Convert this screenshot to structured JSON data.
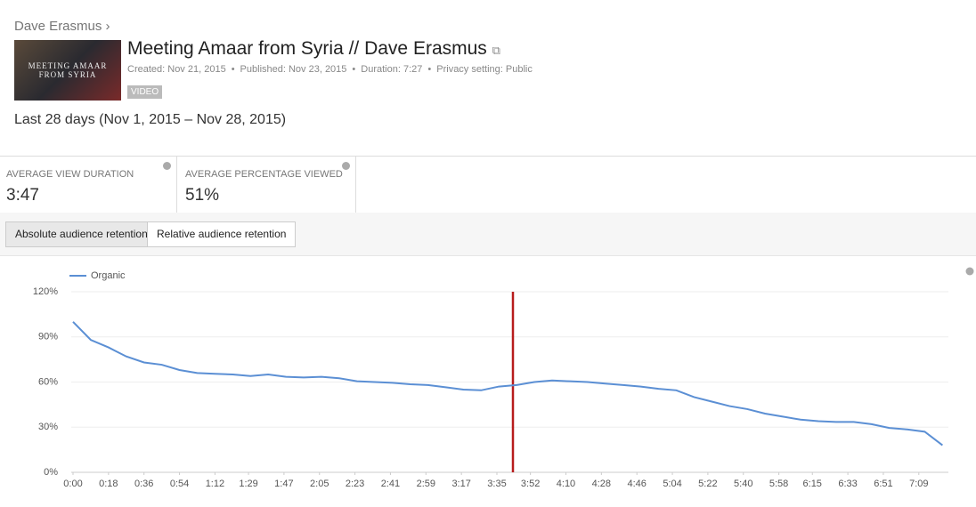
{
  "header": {
    "breadcrumb": "Dave Erasmus ›"
  },
  "video": {
    "title": "Meeting Amaar from Syria // Dave Erasmus",
    "thumbnail_text": [
      "MEETING AMAAR",
      "FROM SYRIA"
    ],
    "meta": [
      "Created: Nov 21, 2015",
      "Published: Nov 23, 2015",
      "Duration: 7:27",
      "Privacy setting: Public"
    ],
    "badge": "VIDEO"
  },
  "period": "Last 28 days (Nov 1, 2015 – Nov 28, 2015)",
  "metrics": [
    {
      "label": "AVERAGE VIEW DURATION",
      "value": "3:47"
    },
    {
      "label": "AVERAGE PERCENTAGE VIEWED",
      "value": "51%"
    }
  ],
  "tabs": [
    "Absolute audience retention",
    "Relative audience retention"
  ],
  "chart_data": {
    "type": "line",
    "x": [
      0,
      9,
      18,
      27,
      36,
      45,
      54,
      63,
      72,
      81,
      90,
      99,
      108,
      117,
      126,
      135,
      144,
      153,
      162,
      171,
      180,
      189,
      198,
      207,
      216,
      225,
      234,
      243,
      252,
      261,
      270,
      279,
      288,
      297,
      306,
      315,
      324,
      333,
      342,
      351,
      360,
      369,
      378,
      387,
      396,
      405,
      414,
      423,
      432,
      441
    ],
    "series": [
      {
        "name": "Organic",
        "color": "#5b8fd4",
        "values": [
          100,
          88,
          83,
          77,
          73,
          71.5,
          68,
          66,
          65.5,
          65,
          64,
          65,
          63.5,
          63,
          63.5,
          62.5,
          60.5,
          60,
          59.5,
          58.5,
          58,
          56.5,
          55,
          54.5,
          57,
          58,
          60,
          61,
          60.5,
          60,
          59,
          58,
          57,
          55.5,
          54.5,
          50,
          47,
          44,
          42,
          39,
          37,
          35,
          34,
          33.5,
          33.5,
          32,
          29.5,
          28.5,
          27,
          18
        ]
      }
    ],
    "xlim": [
      0,
      444
    ],
    "xticks": [
      {
        "value": 0,
        "label": "0:00"
      },
      {
        "value": 18,
        "label": "0:18"
      },
      {
        "value": 36,
        "label": "0:36"
      },
      {
        "value": 54,
        "label": "0:54"
      },
      {
        "value": 72,
        "label": "1:12"
      },
      {
        "value": 89,
        "label": "1:29"
      },
      {
        "value": 107,
        "label": "1:47"
      },
      {
        "value": 125,
        "label": "2:05"
      },
      {
        "value": 143,
        "label": "2:23"
      },
      {
        "value": 161,
        "label": "2:41"
      },
      {
        "value": 179,
        "label": "2:59"
      },
      {
        "value": 197,
        "label": "3:17"
      },
      {
        "value": 215,
        "label": "3:35"
      },
      {
        "value": 232,
        "label": "3:52"
      },
      {
        "value": 250,
        "label": "4:10"
      },
      {
        "value": 268,
        "label": "4:28"
      },
      {
        "value": 286,
        "label": "4:46"
      },
      {
        "value": 304,
        "label": "5:04"
      },
      {
        "value": 322,
        "label": "5:22"
      },
      {
        "value": 340,
        "label": "5:40"
      },
      {
        "value": 358,
        "label": "5:58"
      },
      {
        "value": 375,
        "label": "6:15"
      },
      {
        "value": 393,
        "label": "6:33"
      },
      {
        "value": 411,
        "label": "6:51"
      },
      {
        "value": 429,
        "label": "7:09"
      }
    ],
    "ylim": [
      0,
      120
    ],
    "yticks": [
      {
        "value": 0,
        "label": "0%"
      },
      {
        "value": 30,
        "label": "30%"
      },
      {
        "value": 60,
        "label": "60%"
      },
      {
        "value": 90,
        "label": "90%"
      },
      {
        "value": 120,
        "label": "120%"
      }
    ],
    "grid": true
  }
}
